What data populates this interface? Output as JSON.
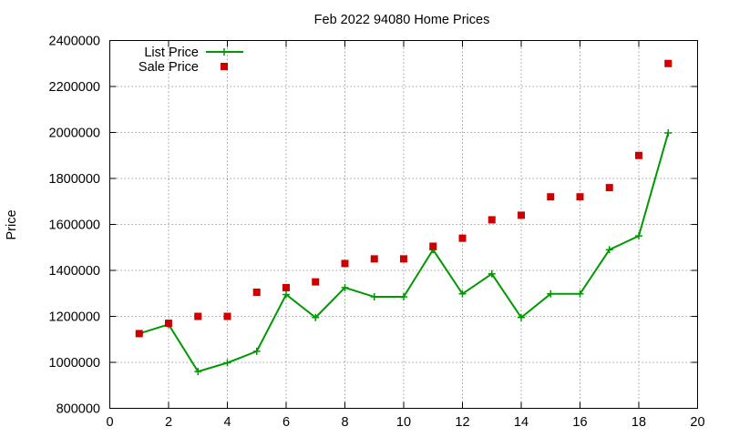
{
  "chart_data": {
    "type": "line",
    "title": "Feb 2022 94080 Home Prices",
    "xlabel": "",
    "ylabel": "Price",
    "xlim": [
      0,
      20
    ],
    "ylim": [
      800000,
      2400000
    ],
    "xticks": [
      0,
      2,
      4,
      6,
      8,
      10,
      12,
      14,
      16,
      18,
      20
    ],
    "yticks": [
      800000,
      1000000,
      1200000,
      1400000,
      1600000,
      1800000,
      2000000,
      2200000,
      2400000
    ],
    "grid": true,
    "legend_position": "top-left",
    "series": [
      {
        "name": "List Price",
        "style": "line-with-plus-markers",
        "color": "#009900",
        "x": [
          1,
          2,
          3,
          4,
          5,
          6,
          7,
          8,
          9,
          10,
          11,
          12,
          13,
          14,
          15,
          16,
          17,
          18,
          19
        ],
        "y": [
          1125000,
          1165000,
          960000,
          998000,
          1048000,
          1295000,
          1195000,
          1325000,
          1285000,
          1285000,
          1490000,
          1298000,
          1385000,
          1195000,
          1298000,
          1298000,
          1490000,
          1550000,
          1998000
        ]
      },
      {
        "name": "Sale Price",
        "style": "square-markers",
        "color": "#cc0000",
        "x": [
          1,
          2,
          3,
          4,
          5,
          6,
          7,
          8,
          9,
          10,
          11,
          12,
          13,
          14,
          15,
          16,
          17,
          18,
          19
        ],
        "y": [
          1125000,
          1170000,
          1200000,
          1200000,
          1305000,
          1325000,
          1350000,
          1430000,
          1450000,
          1450000,
          1505000,
          1540000,
          1620000,
          1640000,
          1720000,
          1720000,
          1760000,
          1900000,
          2300000
        ]
      }
    ]
  }
}
